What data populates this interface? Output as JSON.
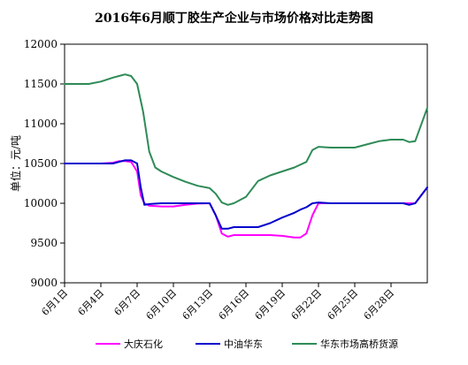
{
  "chart_data": {
    "type": "line",
    "title": "2016年6月顺丁胶生产企业与市场价格对比走势图",
    "ylabel": "单位：元/吨",
    "xlabel": "",
    "ylim": [
      9000,
      12000
    ],
    "yticks": [
      9000,
      9500,
      10000,
      10500,
      11000,
      11500,
      12000
    ],
    "xlim": [
      1,
      31
    ],
    "xticks": [
      1,
      4,
      7,
      10,
      13,
      16,
      19,
      22,
      25,
      28
    ],
    "xtick_labels": [
      "6月1日",
      "6月4日",
      "6月7日",
      "6月10日",
      "6月13日",
      "6月16日",
      "6月19日",
      "6月22日",
      "6月25日",
      "6月28日"
    ],
    "grid": false,
    "legend_position": "bottom",
    "series": [
      {
        "name": "大庆石化",
        "color": "#FF00FF",
        "x": [
          1,
          2,
          3,
          4,
          5,
          5.5,
          6,
          6.5,
          7,
          7.3,
          7.6,
          8,
          9,
          10,
          11,
          12,
          13,
          13.5,
          14,
          14.5,
          15,
          16,
          17,
          18,
          19,
          20,
          20.5,
          21,
          21.5,
          22,
          23,
          24,
          25,
          26,
          27,
          28,
          29,
          30,
          31
        ],
        "y": [
          10500,
          10500,
          10500,
          10500,
          10510,
          10530,
          10530,
          10520,
          10400,
          10100,
          10000,
          9970,
          9960,
          9960,
          9980,
          9995,
          10000,
          9850,
          9620,
          9580,
          9600,
          9600,
          9600,
          9600,
          9590,
          9570,
          9570,
          9620,
          9850,
          10000,
          10000,
          10000,
          10000,
          10000,
          10000,
          10000,
          10000,
          10000,
          10200
        ]
      },
      {
        "name": "中油华东",
        "color": "#0000CC",
        "x": [
          1,
          2,
          3,
          4,
          5,
          5.5,
          6,
          6.5,
          7,
          7.3,
          7.6,
          8,
          9,
          10,
          11,
          12,
          13,
          13.5,
          14,
          14.5,
          15,
          16,
          17,
          18,
          19,
          20,
          20.5,
          21,
          21.5,
          22,
          23,
          24,
          25,
          26,
          27,
          28,
          29,
          29.5,
          30,
          31
        ],
        "y": [
          10500,
          10500,
          10500,
          10500,
          10500,
          10520,
          10540,
          10540,
          10500,
          10200,
          9980,
          9990,
          10000,
          10000,
          10000,
          10000,
          10000,
          9850,
          9680,
          9680,
          9700,
          9700,
          9700,
          9750,
          9820,
          9880,
          9920,
          9950,
          10000,
          10010,
          10000,
          10000,
          10000,
          10000,
          10000,
          10000,
          10000,
          9980,
          10000,
          10200
        ]
      },
      {
        "name": "华东市场高桥货源",
        "color": "#2E8B57",
        "x": [
          1,
          2,
          3,
          4,
          5,
          5.5,
          6,
          6.5,
          7,
          7.5,
          8,
          8.5,
          9,
          10,
          11,
          12,
          13,
          13.5,
          14,
          14.5,
          15,
          16,
          17,
          18,
          19,
          20,
          21,
          21.5,
          22,
          23,
          24,
          25,
          26,
          27,
          28,
          29,
          29.5,
          30,
          31
        ],
        "y": [
          11500,
          11500,
          11500,
          11530,
          11580,
          11600,
          11620,
          11600,
          11500,
          11150,
          10650,
          10450,
          10400,
          10330,
          10270,
          10220,
          10190,
          10120,
          10010,
          9980,
          10000,
          10080,
          10280,
          10350,
          10400,
          10450,
          10520,
          10670,
          10710,
          10700,
          10700,
          10700,
          10740,
          10780,
          10800,
          10800,
          10770,
          10780,
          11200
        ]
      }
    ]
  }
}
